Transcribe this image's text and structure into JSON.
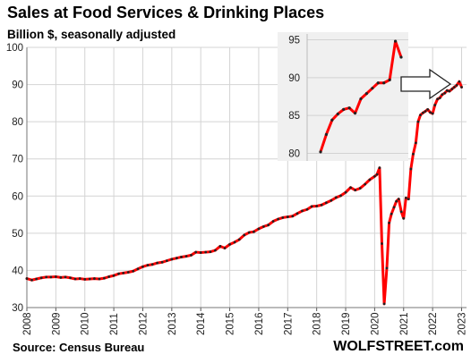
{
  "chart_data": {
    "type": "line",
    "title": "Sales at Food Services & Drinking Places",
    "subtitle": "Billion $, seasonally adjusted",
    "source": "Source: Census Bureau",
    "brand": "WOLFSTREET.com",
    "xlabel": "",
    "ylabel": "",
    "xlim": [
      2008,
      2023.17
    ],
    "ylim": [
      30,
      100
    ],
    "x_ticks": [
      "2008",
      "2009",
      "2010",
      "2011",
      "2012",
      "2013",
      "2014",
      "2015",
      "2016",
      "2017",
      "2018",
      "2019",
      "2020",
      "2021",
      "2022",
      "2023"
    ],
    "y_ticks": [
      "30",
      "40",
      "50",
      "60",
      "70",
      "80",
      "90",
      "100"
    ],
    "grid": true,
    "line_color": "#ff0000",
    "marker_color": "#222222",
    "series": [
      {
        "points": [
          [
            2008.0,
            37.8
          ],
          [
            2008.17,
            37.4
          ],
          [
            2008.33,
            37.7
          ],
          [
            2008.5,
            38.0
          ],
          [
            2008.67,
            38.2
          ],
          [
            2008.83,
            38.2
          ],
          [
            2009.0,
            38.3
          ],
          [
            2009.17,
            38.1
          ],
          [
            2009.33,
            38.2
          ],
          [
            2009.5,
            38.0
          ],
          [
            2009.67,
            37.7
          ],
          [
            2009.83,
            37.8
          ],
          [
            2010.0,
            37.6
          ],
          [
            2010.17,
            37.7
          ],
          [
            2010.33,
            37.8
          ],
          [
            2010.5,
            37.7
          ],
          [
            2010.67,
            37.9
          ],
          [
            2010.83,
            38.3
          ],
          [
            2011.0,
            38.6
          ],
          [
            2011.17,
            39.1
          ],
          [
            2011.33,
            39.3
          ],
          [
            2011.5,
            39.5
          ],
          [
            2011.67,
            39.8
          ],
          [
            2011.83,
            40.4
          ],
          [
            2012.0,
            41.0
          ],
          [
            2012.17,
            41.4
          ],
          [
            2012.33,
            41.6
          ],
          [
            2012.5,
            42.0
          ],
          [
            2012.67,
            42.2
          ],
          [
            2012.83,
            42.6
          ],
          [
            2013.0,
            43.0
          ],
          [
            2013.17,
            43.3
          ],
          [
            2013.33,
            43.6
          ],
          [
            2013.5,
            43.8
          ],
          [
            2013.67,
            44.1
          ],
          [
            2013.83,
            44.9
          ],
          [
            2014.0,
            44.8
          ],
          [
            2014.17,
            44.9
          ],
          [
            2014.33,
            45.0
          ],
          [
            2014.5,
            45.4
          ],
          [
            2014.67,
            46.5
          ],
          [
            2014.83,
            46.0
          ],
          [
            2015.0,
            47.0
          ],
          [
            2015.17,
            47.6
          ],
          [
            2015.33,
            48.3
          ],
          [
            2015.5,
            49.5
          ],
          [
            2015.67,
            50.2
          ],
          [
            2015.83,
            50.4
          ],
          [
            2016.0,
            51.2
          ],
          [
            2016.17,
            51.8
          ],
          [
            2016.33,
            52.2
          ],
          [
            2016.5,
            53.2
          ],
          [
            2016.67,
            53.8
          ],
          [
            2016.83,
            54.2
          ],
          [
            2017.0,
            54.4
          ],
          [
            2017.17,
            54.6
          ],
          [
            2017.33,
            55.3
          ],
          [
            2017.5,
            56.0
          ],
          [
            2017.67,
            56.4
          ],
          [
            2017.83,
            57.2
          ],
          [
            2018.0,
            57.3
          ],
          [
            2018.17,
            57.6
          ],
          [
            2018.33,
            58.2
          ],
          [
            2018.5,
            58.8
          ],
          [
            2018.67,
            59.6
          ],
          [
            2018.83,
            60.1
          ],
          [
            2019.0,
            61.0
          ],
          [
            2019.17,
            62.3
          ],
          [
            2019.33,
            61.6
          ],
          [
            2019.5,
            62.1
          ],
          [
            2019.67,
            63.2
          ],
          [
            2019.83,
            64.4
          ],
          [
            2020.0,
            65.3
          ],
          [
            2020.08,
            65.8
          ],
          [
            2020.17,
            67.6
          ],
          [
            2020.25,
            47.2
          ],
          [
            2020.33,
            31.0
          ],
          [
            2020.42,
            40.6
          ],
          [
            2020.5,
            52.8
          ],
          [
            2020.58,
            55.2
          ],
          [
            2020.67,
            57.0
          ],
          [
            2020.75,
            58.6
          ],
          [
            2020.83,
            59.2
          ],
          [
            2020.92,
            55.8
          ],
          [
            2021.0,
            54.0
          ],
          [
            2021.08,
            59.5
          ],
          [
            2021.17,
            59.2
          ],
          [
            2021.25,
            67.3
          ],
          [
            2021.33,
            71.3
          ],
          [
            2021.42,
            74.3
          ],
          [
            2021.5,
            80.0
          ],
          [
            2021.58,
            81.8
          ],
          [
            2021.67,
            82.4
          ],
          [
            2021.75,
            82.8
          ],
          [
            2021.83,
            83.3
          ],
          [
            2021.92,
            82.5
          ],
          [
            2022.0,
            82.2
          ],
          [
            2022.08,
            84.5
          ],
          [
            2022.17,
            86.1
          ],
          [
            2022.25,
            86.4
          ],
          [
            2022.33,
            87.3
          ],
          [
            2022.42,
            87.7
          ],
          [
            2022.5,
            88.4
          ],
          [
            2022.58,
            88.2
          ],
          [
            2022.67,
            88.8
          ],
          [
            2022.75,
            89.3
          ],
          [
            2022.83,
            89.8
          ],
          [
            2022.92,
            90.8
          ],
          [
            2023.0,
            89.3
          ]
        ]
      }
    ],
    "inset": {
      "ylim": [
        79,
        96
      ],
      "y_ticks": [
        "80",
        "85",
        "90",
        "95"
      ],
      "background": "#f0f0f0",
      "grid": true,
      "values": [
        80.2,
        82.5,
        84.4,
        85.2,
        85.8,
        86.0,
        85.3,
        87.2,
        87.9,
        88.6,
        89.3,
        89.3,
        89.7,
        94.8,
        92.7
      ]
    },
    "annotation": "outline-arrow-pointing-right"
  }
}
